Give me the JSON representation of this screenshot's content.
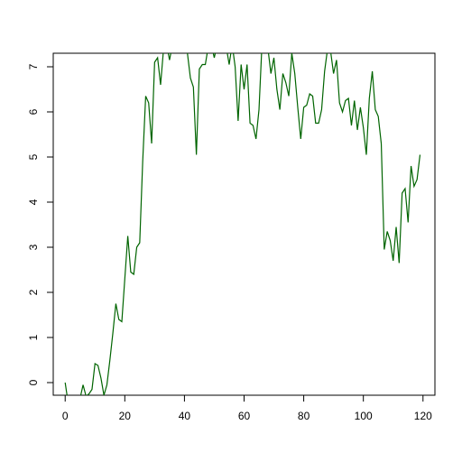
{
  "chart_data": {
    "type": "line",
    "title": "",
    "xlabel": "",
    "ylabel": "",
    "xlim": [
      -4,
      124
    ],
    "ylim": [
      -0.28,
      7.3
    ],
    "grid": false,
    "legend": "none",
    "x_ticks": [
      0,
      20,
      40,
      60,
      80,
      100,
      120
    ],
    "y_ticks": [
      0,
      1,
      2,
      3,
      4,
      5,
      6,
      7
    ],
    "x_tick_labels": [
      "0",
      "20",
      "40",
      "60",
      "80",
      "100",
      "120"
    ],
    "y_tick_labels": [
      "0",
      "1",
      "2",
      "3",
      "4",
      "5",
      "6",
      "7"
    ],
    "series": [
      {
        "color": "#006400",
        "x": [
          0,
          1,
          2,
          3,
          4,
          5,
          6,
          7,
          8,
          9,
          10,
          11,
          12,
          13,
          14,
          15,
          16,
          17,
          18,
          19,
          20,
          21,
          22,
          23,
          24,
          25,
          26,
          27,
          28,
          29,
          30,
          31,
          32,
          33,
          34,
          35,
          36,
          37,
          38,
          39,
          40,
          41,
          42,
          43,
          44,
          45,
          46,
          47,
          48,
          49,
          50,
          51,
          52,
          53,
          54,
          55,
          56,
          57,
          58,
          59,
          60,
          61,
          62,
          63,
          64,
          65,
          66,
          67,
          68,
          69,
          70,
          71,
          72,
          73,
          74,
          75,
          76,
          77,
          78,
          79,
          80,
          81,
          82,
          83,
          84,
          85,
          86,
          87,
          88,
          89,
          90,
          91,
          92,
          93,
          94,
          95,
          96,
          97,
          98,
          99,
          100,
          101,
          102,
          103,
          104,
          105,
          106,
          107,
          108,
          109,
          110,
          111,
          112,
          113,
          114,
          115,
          116,
          117,
          118,
          119
        ],
        "y": [
          0.0,
          -0.45,
          -0.5,
          -0.5,
          -0.45,
          -0.35,
          -0.05,
          -0.3,
          -0.25,
          -0.15,
          0.42,
          0.38,
          0.1,
          -0.28,
          -0.05,
          0.5,
          1.1,
          1.75,
          1.4,
          1.35,
          2.3,
          3.25,
          2.45,
          2.4,
          3.0,
          3.1,
          4.9,
          6.35,
          6.2,
          5.3,
          7.1,
          7.2,
          6.6,
          7.4,
          7.5,
          7.15,
          7.5,
          7.6,
          7.55,
          7.5,
          7.5,
          7.3,
          6.75,
          6.55,
          5.05,
          6.95,
          7.05,
          7.05,
          7.45,
          7.5,
          7.2,
          7.5,
          7.6,
          7.5,
          7.45,
          7.05,
          7.5,
          7.0,
          5.8,
          7.05,
          6.5,
          7.05,
          5.75,
          5.7,
          5.4,
          6.05,
          7.5,
          7.45,
          7.4,
          6.85,
          7.2,
          6.5,
          6.05,
          6.85,
          6.65,
          6.35,
          7.3,
          6.85,
          6.1,
          5.4,
          6.1,
          6.15,
          6.4,
          6.35,
          5.75,
          5.75,
          6.05,
          6.9,
          7.4,
          7.35,
          6.85,
          7.15,
          6.2,
          6.0,
          6.25,
          6.3,
          5.7,
          6.25,
          5.6,
          6.1,
          5.65,
          5.05,
          6.3,
          6.9,
          6.05,
          5.9,
          5.3,
          2.95,
          3.35,
          3.15,
          2.7,
          3.45,
          2.65,
          4.2,
          4.3,
          3.55,
          4.8,
          4.35,
          4.5,
          5.05
        ]
      }
    ]
  }
}
